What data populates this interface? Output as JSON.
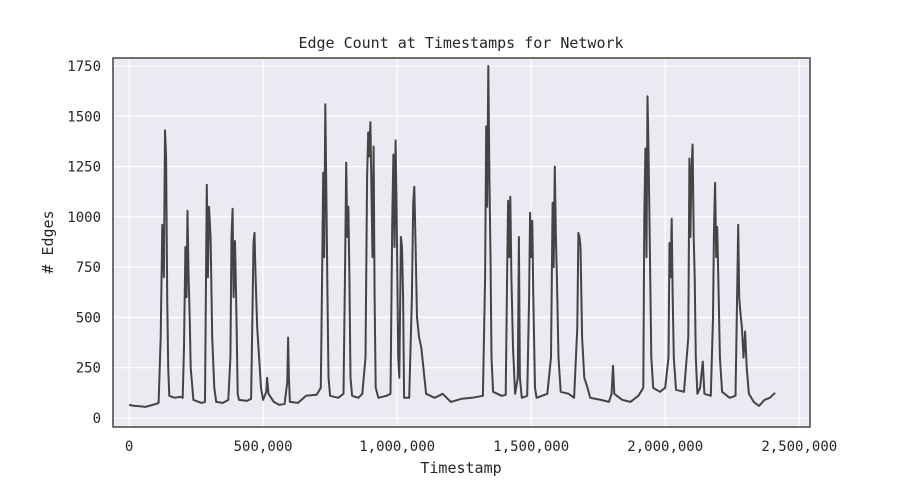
{
  "chart_data": {
    "type": "line",
    "title": "Edge Count at Timestamps for Network",
    "xlabel": "Timestamp",
    "ylabel": "# Edges",
    "xlim": [
      -60000,
      2540000
    ],
    "ylim": [
      -45,
      1790
    ],
    "x_ticks": [
      0,
      500000,
      1000000,
      1500000,
      2000000,
      2500000
    ],
    "x_tick_labels": [
      "0",
      "500,000",
      "1,000,000",
      "1,500,000",
      "2,000,000",
      "2,500,000"
    ],
    "y_ticks": [
      0,
      250,
      500,
      750,
      1000,
      1250,
      1500,
      1750
    ],
    "y_tick_labels": [
      "0",
      "250",
      "500",
      "750",
      "1000",
      "1250",
      "1500",
      "1750"
    ],
    "grid": true,
    "legend": "none",
    "colors": {
      "background": "#eaeaf2",
      "grid": "#ffffff",
      "line": "#444444",
      "frame": "#444444"
    },
    "series": [
      {
        "values": [
          [
            0,
            65
          ],
          [
            20000,
            60
          ],
          [
            40000,
            58
          ],
          [
            60000,
            55
          ],
          [
            80000,
            62
          ],
          [
            100000,
            70
          ],
          [
            110000,
            75
          ],
          [
            118000,
            400
          ],
          [
            124000,
            960
          ],
          [
            130000,
            700
          ],
          [
            134000,
            1430
          ],
          [
            138000,
            1300
          ],
          [
            142000,
            600
          ],
          [
            146000,
            250
          ],
          [
            150000,
            110
          ],
          [
            170000,
            100
          ],
          [
            190000,
            105
          ],
          [
            200000,
            100
          ],
          [
            205000,
            350
          ],
          [
            210000,
            850
          ],
          [
            214000,
            600
          ],
          [
            218000,
            1030
          ],
          [
            222000,
            700
          ],
          [
            226000,
            500
          ],
          [
            230000,
            250
          ],
          [
            240000,
            90
          ],
          [
            270000,
            75
          ],
          [
            283000,
            80
          ],
          [
            287000,
            700
          ],
          [
            290000,
            1160
          ],
          [
            294000,
            700
          ],
          [
            298000,
            1050
          ],
          [
            304000,
            900
          ],
          [
            310000,
            400
          ],
          [
            318000,
            150
          ],
          [
            325000,
            80
          ],
          [
            350000,
            75
          ],
          [
            370000,
            90
          ],
          [
            378000,
            300
          ],
          [
            382000,
            900
          ],
          [
            386000,
            1040
          ],
          [
            390000,
            600
          ],
          [
            395000,
            880
          ],
          [
            400000,
            550
          ],
          [
            405000,
            120
          ],
          [
            410000,
            90
          ],
          [
            440000,
            85
          ],
          [
            455000,
            95
          ],
          [
            460000,
            500
          ],
          [
            464000,
            870
          ],
          [
            468000,
            920
          ],
          [
            472000,
            700
          ],
          [
            478000,
            450
          ],
          [
            485000,
            300
          ],
          [
            492000,
            150
          ],
          [
            500000,
            90
          ],
          [
            512000,
            130
          ],
          [
            515000,
            200
          ],
          [
            520000,
            120
          ],
          [
            540000,
            80
          ],
          [
            560000,
            65
          ],
          [
            580000,
            70
          ],
          [
            590000,
            180
          ],
          [
            593000,
            400
          ],
          [
            596000,
            200
          ],
          [
            600000,
            80
          ],
          [
            630000,
            75
          ],
          [
            660000,
            110
          ],
          [
            700000,
            115
          ],
          [
            715000,
            150
          ],
          [
            720000,
            700
          ],
          [
            724000,
            1220
          ],
          [
            728000,
            800
          ],
          [
            732000,
            1560
          ],
          [
            736000,
            1100
          ],
          [
            740000,
            600
          ],
          [
            744000,
            200
          ],
          [
            750000,
            110
          ],
          [
            780000,
            100
          ],
          [
            800000,
            120
          ],
          [
            806000,
            800
          ],
          [
            810000,
            1270
          ],
          [
            814000,
            900
          ],
          [
            818000,
            1050
          ],
          [
            822000,
            700
          ],
          [
            826000,
            200
          ],
          [
            832000,
            110
          ],
          [
            855000,
            100
          ],
          [
            870000,
            120
          ],
          [
            882000,
            300
          ],
          [
            888000,
            1200
          ],
          [
            892000,
            1420
          ],
          [
            896000,
            1300
          ],
          [
            900000,
            1470
          ],
          [
            904000,
            1150
          ],
          [
            908000,
            800
          ],
          [
            912000,
            1350
          ],
          [
            916000,
            600
          ],
          [
            920000,
            150
          ],
          [
            930000,
            100
          ],
          [
            960000,
            110
          ],
          [
            975000,
            120
          ],
          [
            982000,
            1000
          ],
          [
            986000,
            1310
          ],
          [
            990000,
            850
          ],
          [
            994000,
            1380
          ],
          [
            998000,
            1050
          ],
          [
            1004000,
            300
          ],
          [
            1008000,
            200
          ],
          [
            1014000,
            900
          ],
          [
            1018000,
            850
          ],
          [
            1022000,
            600
          ],
          [
            1026000,
            100
          ],
          [
            1045000,
            100
          ],
          [
            1055000,
            600
          ],
          [
            1060000,
            1070
          ],
          [
            1064000,
            1150
          ],
          [
            1068000,
            900
          ],
          [
            1074000,
            500
          ],
          [
            1082000,
            400
          ],
          [
            1090000,
            350
          ],
          [
            1098000,
            250
          ],
          [
            1108000,
            120
          ],
          [
            1140000,
            100
          ],
          [
            1170000,
            120
          ],
          [
            1200000,
            80
          ],
          [
            1240000,
            95
          ],
          [
            1280000,
            100
          ],
          [
            1320000,
            110
          ],
          [
            1328000,
            700
          ],
          [
            1332000,
            1450
          ],
          [
            1336000,
            1050
          ],
          [
            1340000,
            1750
          ],
          [
            1344000,
            1200
          ],
          [
            1348000,
            800
          ],
          [
            1352000,
            300
          ],
          [
            1358000,
            130
          ],
          [
            1390000,
            110
          ],
          [
            1405000,
            115
          ],
          [
            1410000,
            700
          ],
          [
            1414000,
            1080
          ],
          [
            1418000,
            800
          ],
          [
            1422000,
            1100
          ],
          [
            1426000,
            700
          ],
          [
            1432000,
            350
          ],
          [
            1440000,
            120
          ],
          [
            1450000,
            200
          ],
          [
            1454000,
            900
          ],
          [
            1458000,
            200
          ],
          [
            1465000,
            100
          ],
          [
            1485000,
            110
          ],
          [
            1492000,
            600
          ],
          [
            1496000,
            1020
          ],
          [
            1500000,
            800
          ],
          [
            1504000,
            980
          ],
          [
            1508000,
            600
          ],
          [
            1514000,
            150
          ],
          [
            1520000,
            100
          ],
          [
            1560000,
            120
          ],
          [
            1574000,
            300
          ],
          [
            1580000,
            1070
          ],
          [
            1584000,
            750
          ],
          [
            1588000,
            1250
          ],
          [
            1592000,
            900
          ],
          [
            1596000,
            700
          ],
          [
            1602000,
            300
          ],
          [
            1610000,
            130
          ],
          [
            1640000,
            120
          ],
          [
            1660000,
            100
          ],
          [
            1672000,
            450
          ],
          [
            1676000,
            920
          ],
          [
            1680000,
            900
          ],
          [
            1684000,
            850
          ],
          [
            1690000,
            400
          ],
          [
            1698000,
            200
          ],
          [
            1710000,
            150
          ],
          [
            1720000,
            100
          ],
          [
            1760000,
            90
          ],
          [
            1790000,
            80
          ],
          [
            1800000,
            120
          ],
          [
            1805000,
            260
          ],
          [
            1810000,
            120
          ],
          [
            1840000,
            90
          ],
          [
            1870000,
            80
          ],
          [
            1900000,
            110
          ],
          [
            1918000,
            150
          ],
          [
            1922000,
            1000
          ],
          [
            1926000,
            1340
          ],
          [
            1930000,
            800
          ],
          [
            1934000,
            1600
          ],
          [
            1938000,
            1300
          ],
          [
            1942000,
            900
          ],
          [
            1948000,
            300
          ],
          [
            1955000,
            150
          ],
          [
            1980000,
            130
          ],
          [
            2000000,
            150
          ],
          [
            2012000,
            300
          ],
          [
            2016000,
            870
          ],
          [
            2020000,
            700
          ],
          [
            2024000,
            990
          ],
          [
            2028000,
            600
          ],
          [
            2032000,
            300
          ],
          [
            2040000,
            140
          ],
          [
            2070000,
            130
          ],
          [
            2086000,
            400
          ],
          [
            2090000,
            1290
          ],
          [
            2094000,
            900
          ],
          [
            2098000,
            1240
          ],
          [
            2102000,
            1360
          ],
          [
            2106000,
            900
          ],
          [
            2110000,
            700
          ],
          [
            2114000,
            300
          ],
          [
            2120000,
            120
          ],
          [
            2130000,
            150
          ],
          [
            2140000,
            280
          ],
          [
            2146000,
            120
          ],
          [
            2170000,
            110
          ],
          [
            2178000,
            500
          ],
          [
            2182000,
            940
          ],
          [
            2186000,
            1170
          ],
          [
            2190000,
            800
          ],
          [
            2194000,
            950
          ],
          [
            2198000,
            700
          ],
          [
            2204000,
            300
          ],
          [
            2212000,
            130
          ],
          [
            2240000,
            100
          ],
          [
            2262000,
            110
          ],
          [
            2268000,
            600
          ],
          [
            2272000,
            960
          ],
          [
            2276000,
            600
          ],
          [
            2280000,
            530
          ],
          [
            2286000,
            450
          ],
          [
            2292000,
            300
          ],
          [
            2298000,
            430
          ],
          [
            2304000,
            250
          ],
          [
            2312000,
            120
          ],
          [
            2330000,
            80
          ],
          [
            2350000,
            60
          ],
          [
            2370000,
            90
          ],
          [
            2390000,
            100
          ],
          [
            2410000,
            125
          ]
        ]
      }
    ]
  }
}
